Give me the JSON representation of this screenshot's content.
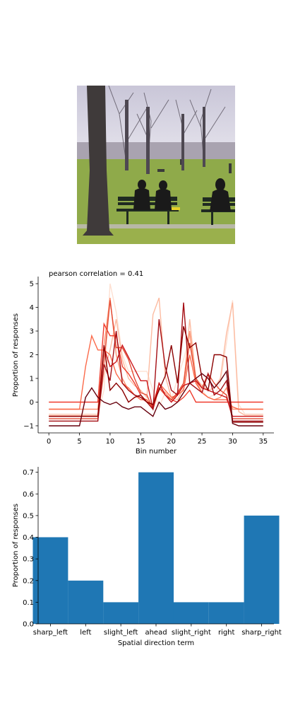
{
  "photo": {
    "subject": "park-bench-scene"
  },
  "chart_data": [
    {
      "type": "line",
      "title": "pearson correlation = 0.41",
      "xlabel": "Bin number",
      "ylabel": "Proportion of responses",
      "xlim": [
        -1.75,
        36.75
      ],
      "ylim": [
        -1.3,
        5.3
      ],
      "xticks": [
        0,
        5,
        10,
        15,
        20,
        25,
        30,
        35
      ],
      "yticks": [
        -1,
        0,
        1,
        2,
        3,
        4,
        5
      ],
      "colormap": "Reds",
      "colors": [
        "#fee0d2",
        "#fcbba1",
        "#fc9272",
        "#fb6a4a",
        "#ef3b2c",
        "#e34a33",
        "#cb181d",
        "#a50f15",
        "#8b0000",
        "#67000d"
      ],
      "series": [
        {
          "y": [
            -0.5,
            -0.5,
            -0.5,
            -0.5,
            -0.5,
            -0.5,
            -0.5,
            -0.5,
            -0.5,
            0.5,
            5.0,
            3.8,
            2.0,
            1.3,
            1.3,
            1.3,
            1.3,
            0.5,
            -0.2,
            0.4,
            0.1,
            1.0,
            1.8,
            2.8,
            1.0,
            0.5,
            0.2,
            0.3,
            0.8,
            2.5,
            4.3,
            -0.1,
            -0.5,
            -0.5,
            -0.5,
            -0.5
          ]
        },
        {
          "y": [
            -0.55,
            -0.55,
            -0.55,
            -0.55,
            -0.55,
            -0.55,
            -0.55,
            -0.55,
            -0.55,
            1.2,
            2.2,
            3.5,
            1.8,
            1.0,
            0.7,
            0.5,
            0.2,
            3.7,
            4.4,
            1.1,
            0.2,
            0.1,
            0.6,
            3.5,
            1.0,
            0.7,
            0.5,
            0.6,
            1.0,
            2.9,
            4.2,
            -0.4,
            -0.55,
            -0.55,
            -0.55,
            -0.55
          ]
        },
        {
          "y": [
            -0.3,
            -0.3,
            -0.3,
            -0.3,
            -0.3,
            -0.3,
            -0.3,
            -0.3,
            -0.3,
            2.4,
            4.4,
            2.0,
            1.0,
            0.5,
            0.3,
            0.2,
            0.1,
            -0.2,
            0.6,
            0.4,
            0.1,
            0.3,
            0.8,
            3.0,
            0.9,
            0.4,
            0.2,
            0.1,
            0.2,
            0.6,
            -0.3,
            -0.3,
            -0.3,
            -0.3,
            -0.3,
            -0.3
          ]
        },
        {
          "y": [
            -0.3,
            -0.3,
            -0.3,
            -0.3,
            -0.3,
            -0.3,
            1.5,
            2.8,
            2.2,
            2.2,
            2.0,
            1.2,
            0.8,
            0.6,
            0.3,
            0.1,
            0.1,
            -0.3,
            0.8,
            0.5,
            0.2,
            0.3,
            0.5,
            2.0,
            0.8,
            0.4,
            0.2,
            0.1,
            0.1,
            0.1,
            -0.2,
            -0.3,
            -0.3,
            -0.3,
            -0.3,
            -0.3
          ]
        },
        {
          "y": [
            0.0,
            0.0,
            0.0,
            0.0,
            0.0,
            0.0,
            0.0,
            0.0,
            0.0,
            3.3,
            2.8,
            2.8,
            1.5,
            1.2,
            0.8,
            0.3,
            0.0,
            -0.1,
            0.8,
            0.3,
            0.1,
            0.0,
            0.2,
            0.5,
            0.0,
            0.0,
            0.0,
            0.0,
            0.0,
            0.0,
            0.0,
            0.0,
            0.0,
            0.0,
            0.0,
            0.0
          ]
        },
        {
          "y": [
            -0.7,
            -0.7,
            -0.7,
            -0.7,
            -0.7,
            -0.7,
            -0.7,
            -0.7,
            -0.7,
            1.7,
            4.3,
            2.3,
            2.3,
            1.8,
            1.0,
            0.4,
            0.3,
            -0.3,
            0.6,
            0.3,
            0.1,
            0.4,
            0.8,
            2.5,
            1.0,
            0.6,
            1.2,
            0.8,
            0.5,
            0.3,
            -0.7,
            -0.7,
            -0.7,
            -0.7,
            -0.7,
            -0.7
          ]
        },
        {
          "y": [
            -0.6,
            -0.6,
            -0.6,
            -0.6,
            -0.6,
            -0.6,
            -0.6,
            -0.6,
            -0.6,
            2.3,
            1.5,
            1.7,
            2.4,
            1.9,
            1.4,
            0.9,
            0.9,
            -0.3,
            0.8,
            0.3,
            0.0,
            0.3,
            0.7,
            0.8,
            0.9,
            0.6,
            0.5,
            0.4,
            0.3,
            0.2,
            -0.6,
            -0.6,
            -0.6,
            -0.6,
            -0.6,
            -0.6
          ]
        },
        {
          "y": [
            -0.8,
            -0.8,
            -0.8,
            -0.8,
            -0.8,
            -0.8,
            -0.8,
            -0.8,
            -0.8,
            1.6,
            0.9,
            3.0,
            0.8,
            0.5,
            0.3,
            0.2,
            0.0,
            -0.3,
            3.5,
            1.5,
            0.5,
            0.3,
            4.2,
            0.8,
            0.6,
            0.4,
            1.2,
            0.3,
            0.5,
            0.9,
            -0.8,
            -0.8,
            -0.8,
            -0.8,
            -0.8,
            -0.8
          ]
        },
        {
          "y": [
            -0.6,
            -0.6,
            -0.6,
            -0.6,
            -0.6,
            -0.6,
            -0.6,
            -0.6,
            -0.6,
            2.4,
            0.5,
            0.8,
            0.5,
            0.0,
            0.2,
            0.3,
            0.0,
            -0.1,
            0.5,
            1.1,
            2.4,
            0.8,
            3.2,
            2.3,
            2.5,
            1.0,
            0.5,
            2.0,
            2.0,
            1.9,
            -0.85,
            -0.85,
            -0.85,
            -0.85,
            -0.85,
            -0.85
          ]
        },
        {
          "y": [
            -1.0,
            -1.0,
            -1.0,
            -1.0,
            -1.0,
            -1.0,
            0.2,
            0.6,
            0.2,
            0.0,
            -0.1,
            0.0,
            -0.2,
            -0.3,
            -0.2,
            -0.2,
            -0.4,
            -0.6,
            0.0,
            -0.3,
            -0.2,
            0.0,
            0.4,
            0.8,
            1.0,
            1.2,
            1.0,
            0.6,
            0.9,
            1.3,
            -0.9,
            -1.0,
            -1.0,
            -1.0,
            -1.0,
            -1.0
          ]
        }
      ]
    },
    {
      "type": "bar",
      "xlabel": "Spatial direction term",
      "ylabel": "Proportion of responses",
      "categories": [
        "sharp_left",
        "left",
        "slight_left",
        "ahead",
        "slight_right",
        "right",
        "sharp_right"
      ],
      "values": [
        0.4,
        0.2,
        0.1,
        0.7,
        0.1,
        0.1,
        0.5
      ],
      "ylim": [
        0,
        0.725
      ],
      "yticks": [
        0.0,
        0.1,
        0.2,
        0.3,
        0.4,
        0.5,
        0.6,
        0.7
      ],
      "color": "#1f77b4"
    }
  ]
}
